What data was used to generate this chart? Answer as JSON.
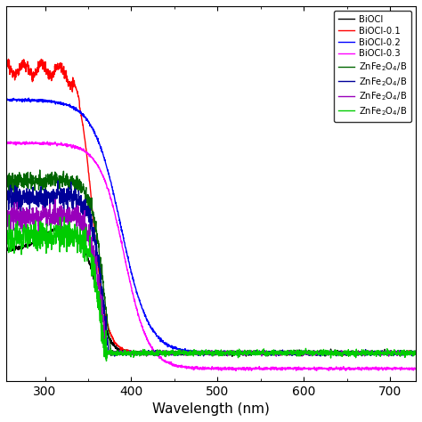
{
  "title": "",
  "xlabel": "Wavelength (nm)",
  "ylabel": "",
  "xlim": [
    255,
    730
  ],
  "ylim": [
    -0.08,
    1.0
  ],
  "x_ticks": [
    300,
    400,
    500,
    600,
    700
  ],
  "legend_labels": [
    "BiOCl",
    "BiOCl-0.1",
    "BiOCl-0.2",
    "BiOCl-0.3",
    "ZnFe$_2$O$_4$/B",
    "ZnFe$_2$O$_4$/B",
    "ZnFe$_2$O$_4$/B",
    "ZnFe$_2$O$_4$/B"
  ],
  "colors": [
    "black",
    "red",
    "blue",
    "magenta",
    "#006600",
    "#000099",
    "#9900bb",
    "#00cc00"
  ],
  "linewidths": [
    1.0,
    1.0,
    1.0,
    1.0,
    1.0,
    1.0,
    1.0,
    1.0
  ]
}
